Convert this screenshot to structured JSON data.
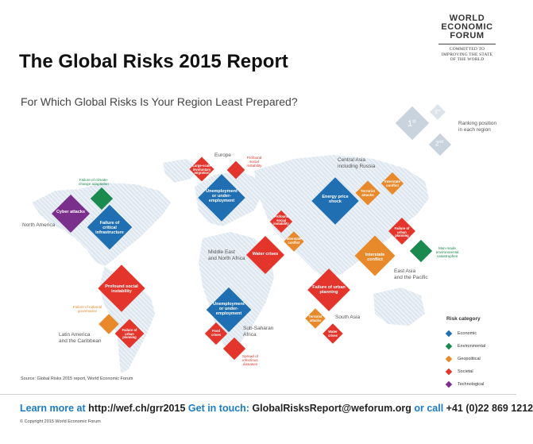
{
  "logo": {
    "lines": [
      "WORLD",
      "ECONOMIC",
      "FORUM"
    ],
    "tagline_1": "COMMITTED TO",
    "tagline_2": "IMPROVING THE STATE",
    "tagline_3": "OF THE WORLD"
  },
  "title": "The Global Risks 2015 Report",
  "subtitle": "For Which Global Risks Is Your Region Least Prepared?",
  "ranking_key": {
    "first": "1",
    "first_sup": "st",
    "second": "2",
    "second_sup": "nd",
    "third": "3",
    "third_sup": "rd",
    "caption_1": "Ranking position",
    "caption_2": "in each region"
  },
  "regions": {
    "north_america": "North America",
    "europe": "Europe",
    "central_asia_1": "Central Asia",
    "central_asia_2": "including Russia",
    "mena_1": "Middle East",
    "mena_2": "and North Africa",
    "east_asia_1": "East Asia",
    "east_asia_2": "and the Pacific",
    "latin_america_1": "Latin America",
    "latin_america_2": "and the Caribbean",
    "ssa_1": "Sub-Saharan",
    "ssa_2": "Africa",
    "south_asia": "South Asia"
  },
  "risks": {
    "na_1": "Cyber attacks",
    "na_2": "Failure of critical infrastructure",
    "na_3": "Failure of climate-change adaptation",
    "eu_1": "Unemployment or under-employment",
    "eu_2": "Large-scale involuntary migration",
    "eu_3": "Profound social instability",
    "ca_1": "Energy price shock",
    "ca_2": "Terrorist attacks",
    "ca_3": "Interstate conflict",
    "me_1": "Water crises",
    "me_2": "Profound social instability",
    "me_3": "Interstate conflict",
    "ea_1": "Interstate conflict",
    "ea_2": "Failure of urban planning",
    "ea_3": "Man-made environmental catastrophes",
    "la_1": "Profound social instability",
    "la_2": "Failure of national governance",
    "la_3": "Failure of urban planning",
    "ss_1": "Unemployment or under-employment",
    "ss_2": "Food crises",
    "ss_3": "Spread of infectious diseases",
    "sa_1": "Failure of urban planning",
    "sa_2": "Terrorist attacks",
    "sa_3": "Water crises"
  },
  "legend": {
    "title": "Risk category",
    "items": [
      "Economic",
      "Environmental",
      "Geopolitical",
      "Societal",
      "Technological"
    ],
    "colors": {
      "Economic": "#1f6fb2",
      "Environmental": "#1a8a4e",
      "Geopolitical": "#e8892b",
      "Societal": "#e3352b",
      "Technological": "#7b2f8c"
    }
  },
  "source": "Source: Global Risks 2015 report, World Economic Forum",
  "footer": {
    "learn": "Learn more at",
    "url": "http://wef.ch/grr2015",
    "touch": "Get in touch:",
    "email": "GlobalRisksReport@weforum.org",
    "call": "or call",
    "phone": "+41 (0)22 869 1212"
  },
  "copyright": "© Copyright 2015 World Economic Forum"
}
